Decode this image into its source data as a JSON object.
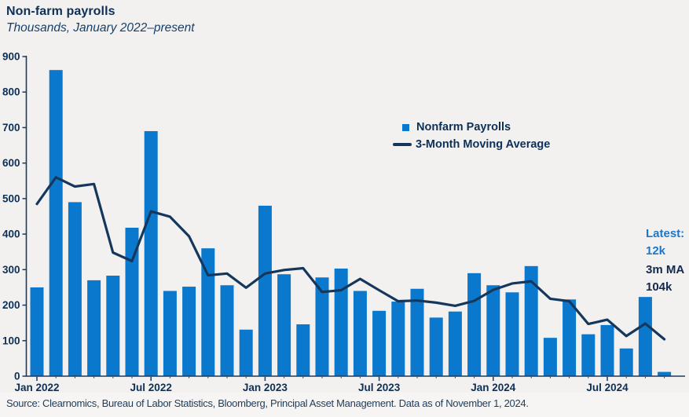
{
  "page": {
    "title": "Non-farm payrolls",
    "subtitle": "Thousands, January 2022–present",
    "source": "Source: Clearnomics, Bureau of Labor Statistics, Bloomberg, Principal Asset Management. Data as of November 1, 2024."
  },
  "legend": {
    "bars_label": "Nonfarm Payrolls",
    "line_label": "3-Month Moving Average"
  },
  "annotation": {
    "latest_label": "Latest:",
    "latest_value": "12k",
    "ma_label": "3m MA",
    "ma_value": "104k"
  },
  "colors": {
    "bar": "#0a78cc",
    "line": "#16375c",
    "axis": "#1b3a5e",
    "text": "#0d3056",
    "accent_blue": "#1878cf",
    "background": "#f2f1f0"
  },
  "chart_data": {
    "type": "bar",
    "title": "Non-farm payrolls",
    "subtitle": "Thousands, January 2022–present",
    "units": "Thousands",
    "ylim": [
      0,
      900
    ],
    "ytick_step": 100,
    "grid": false,
    "legend_position": "upper-center-right",
    "categories": [
      "Jan 2022",
      "Feb 2022",
      "Mar 2022",
      "Apr 2022",
      "May 2022",
      "Jun 2022",
      "Jul 2022",
      "Aug 2022",
      "Sep 2022",
      "Oct 2022",
      "Nov 2022",
      "Dec 2022",
      "Jan 2023",
      "Feb 2023",
      "Mar 2023",
      "Apr 2023",
      "May 2023",
      "Jun 2023",
      "Jul 2023",
      "Aug 2023",
      "Sep 2023",
      "Oct 2023",
      "Nov 2023",
      "Dec 2023",
      "Jan 2024",
      "Feb 2024",
      "Mar 2024",
      "Apr 2024",
      "May 2024",
      "Jun 2024",
      "Jul 2024",
      "Aug 2024",
      "Sep 2024",
      "Oct 2024"
    ],
    "xtick_labels": [
      "Jan 2022",
      "Jul 2022",
      "Jan 2023",
      "Jul 2023",
      "Jan 2024",
      "Jul 2024"
    ],
    "xtick_every": 6,
    "series": [
      {
        "name": "Nonfarm Payrolls",
        "type": "bar",
        "values": [
          250,
          862,
          490,
          270,
          283,
          418,
          690,
          240,
          252,
          360,
          256,
          131,
          480,
          287,
          146,
          278,
          303,
          240,
          184,
          210,
          246,
          165,
          182,
          290,
          256,
          236,
          310,
          108,
          216,
          118,
          144,
          78,
          223,
          12
        ]
      },
      {
        "name": "3-Month Moving Average",
        "type": "line",
        "values": [
          485,
          560,
          534,
          541,
          348,
          324,
          464,
          449,
          394,
          284,
          289,
          249,
          289,
          299,
          304,
          237,
          242,
          274,
          242,
          211,
          213,
          207,
          198,
          212,
          243,
          261,
          267,
          218,
          211,
          147,
          159,
          113,
          148,
          104
        ]
      }
    ]
  }
}
